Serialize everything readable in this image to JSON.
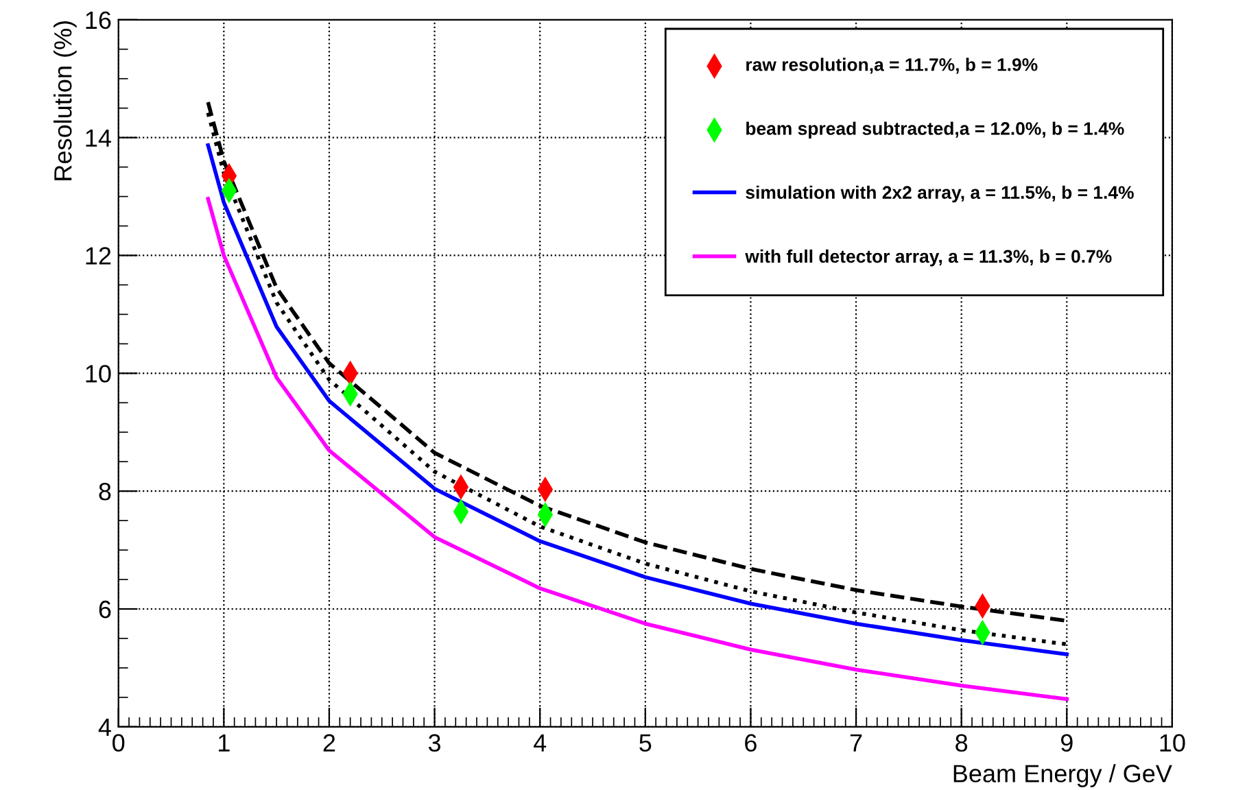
{
  "chart_data": {
    "type": "line",
    "xlabel": "Beam Energy / GeV",
    "ylabel": "Resolution (%)",
    "xlim": [
      0,
      10
    ],
    "ylim": [
      4,
      16
    ],
    "xticks": [
      0,
      1,
      2,
      3,
      4,
      5,
      6,
      7,
      8,
      9,
      10
    ],
    "yticks": [
      4,
      6,
      8,
      10,
      12,
      14,
      16
    ],
    "grid": true,
    "legend": "top right",
    "series": [
      {
        "name": "raw resolution,a = 11.7%, b = 1.9%",
        "type": "scatter",
        "marker": "diamond",
        "color": "#ff0000",
        "x": [
          1.05,
          2.2,
          3.25,
          4.05,
          8.2
        ],
        "values": [
          13.35,
          10.0,
          8.07,
          8.03,
          6.05
        ]
      },
      {
        "name": "beam spread subtracted,a = 12.0%, b = 1.4%",
        "type": "scatter",
        "marker": "diamond",
        "color": "#00ff00",
        "x": [
          1.05,
          2.2,
          3.25,
          4.05,
          8.2
        ],
        "values": [
          13.1,
          9.65,
          7.65,
          7.6,
          5.6
        ]
      },
      {
        "name": "simulation with 2x2 array, a = 11.5%, b = 1.4%",
        "color": "#0000ff",
        "x": [
          0.85,
          1,
          1.5,
          2,
          3,
          4,
          5,
          6,
          7,
          8,
          9
        ],
        "values": [
          13.87,
          12.9,
          10.79,
          9.53,
          8.04,
          7.15,
          6.54,
          6.09,
          5.75,
          5.47,
          5.23
        ]
      },
      {
        "name": "with full detector array, a = 11.3%, b = 0.7%",
        "color": "#ff00ff",
        "x": [
          0.85,
          1,
          1.5,
          2,
          3,
          4,
          5,
          6,
          7,
          8,
          9
        ],
        "values": [
          12.96,
          12.0,
          9.93,
          8.69,
          7.22,
          6.35,
          5.75,
          5.31,
          4.97,
          4.7,
          4.47
        ]
      },
      {
        "color": "#000000",
        "line_style": "dashed",
        "x": [
          0.85,
          1,
          1.5,
          2,
          3,
          4,
          5,
          6,
          7,
          8,
          9
        ],
        "values": [
          14.6,
          13.6,
          11.45,
          10.17,
          8.65,
          7.75,
          7.13,
          6.68,
          6.32,
          6.04,
          5.8
        ]
      },
      {
        "color": "#000000",
        "line_style": "dotted",
        "x": [
          0.85,
          1,
          1.5,
          2,
          3,
          4,
          5,
          6,
          7,
          8,
          9
        ],
        "values": [
          14.42,
          13.4,
          11.2,
          9.89,
          8.33,
          7.4,
          6.77,
          6.3,
          5.94,
          5.64,
          5.4
        ]
      }
    ]
  }
}
